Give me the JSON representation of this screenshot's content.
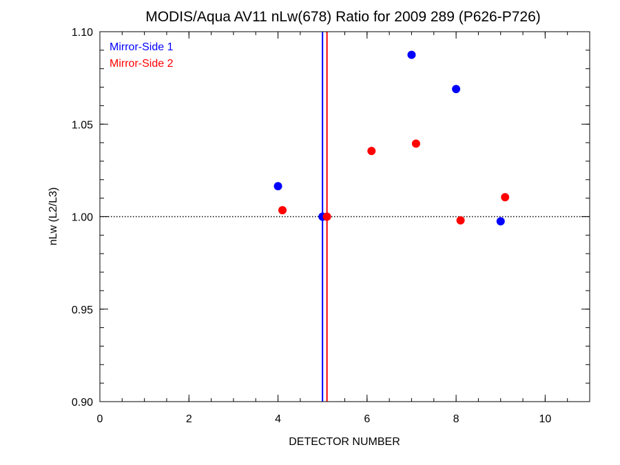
{
  "chart_data": {
    "type": "scatter",
    "title": "MODIS/Aqua AV11 nLw(678) Ratio for 2009 289 (P626-P726)",
    "xlabel": "DETECTOR NUMBER",
    "ylabel": "nLw (L2/L3)",
    "xlim": [
      0,
      11
    ],
    "ylim": [
      0.9,
      1.1
    ],
    "x_ticks": [
      0,
      2,
      4,
      6,
      8,
      10
    ],
    "x_tick_labels": [
      "0",
      "2",
      "4",
      "6",
      "8",
      "10"
    ],
    "y_ticks": [
      0.9,
      0.95,
      1.0,
      1.05,
      1.1
    ],
    "y_tick_labels": [
      "0.90",
      "0.95",
      "1.00",
      "1.05",
      "1.10"
    ],
    "x_minor_step": 0.5,
    "y_minor_step": 0.01,
    "reference_line_y": 1.0,
    "legend_position": "top-left",
    "series": [
      {
        "name": "Mirror-Side 1",
        "color": "#0000ff",
        "points": [
          {
            "x": 4,
            "y": 1.0165
          },
          {
            "x": 5,
            "y": 1.0
          },
          {
            "x": 7,
            "y": 1.0875
          },
          {
            "x": 8,
            "y": 1.069
          },
          {
            "x": 9,
            "y": 0.9975
          }
        ],
        "vertical_line_x": 5.0
      },
      {
        "name": "Mirror-Side 2",
        "color": "#ff0000",
        "points": [
          {
            "x": 4.1,
            "y": 1.0035
          },
          {
            "x": 5.1,
            "y": 1.0
          },
          {
            "x": 6.1,
            "y": 1.0355
          },
          {
            "x": 7.1,
            "y": 1.0395
          },
          {
            "x": 8.1,
            "y": 0.998
          },
          {
            "x": 9.1,
            "y": 1.0105
          }
        ],
        "vertical_line_x": 5.1
      }
    ]
  }
}
